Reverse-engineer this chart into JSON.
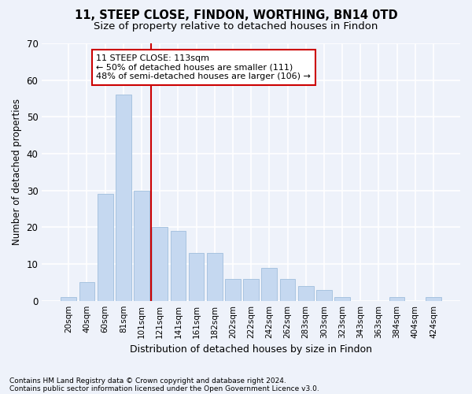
{
  "title1": "11, STEEP CLOSE, FINDON, WORTHING, BN14 0TD",
  "title2": "Size of property relative to detached houses in Findon",
  "xlabel": "Distribution of detached houses by size in Findon",
  "ylabel": "Number of detached properties",
  "footnote1": "Contains HM Land Registry data © Crown copyright and database right 2024.",
  "footnote2": "Contains public sector information licensed under the Open Government Licence v3.0.",
  "categories": [
    "20sqm",
    "40sqm",
    "60sqm",
    "81sqm",
    "101sqm",
    "121sqm",
    "141sqm",
    "161sqm",
    "182sqm",
    "202sqm",
    "222sqm",
    "242sqm",
    "262sqm",
    "283sqm",
    "303sqm",
    "323sqm",
    "343sqm",
    "363sqm",
    "384sqm",
    "404sqm",
    "424sqm"
  ],
  "values": [
    1,
    5,
    29,
    56,
    30,
    20,
    19,
    13,
    13,
    6,
    6,
    9,
    6,
    4,
    3,
    1,
    0,
    0,
    1,
    0,
    1
  ],
  "bar_color": "#c5d8f0",
  "bar_edge_color": "#a8c4e0",
  "vline_x_index": 4.5,
  "vline_color": "#cc0000",
  "annotation_text": "11 STEEP CLOSE: 113sqm\n← 50% of detached houses are smaller (111)\n48% of semi-detached houses are larger (106) →",
  "annotation_box_color": "#ffffff",
  "annotation_box_edge_color": "#cc0000",
  "ylim": [
    0,
    70
  ],
  "yticks": [
    0,
    10,
    20,
    30,
    40,
    50,
    60,
    70
  ],
  "background_color": "#eef2fa",
  "grid_color": "#ffffff",
  "title_fontsize": 10.5,
  "subtitle_fontsize": 9.5
}
